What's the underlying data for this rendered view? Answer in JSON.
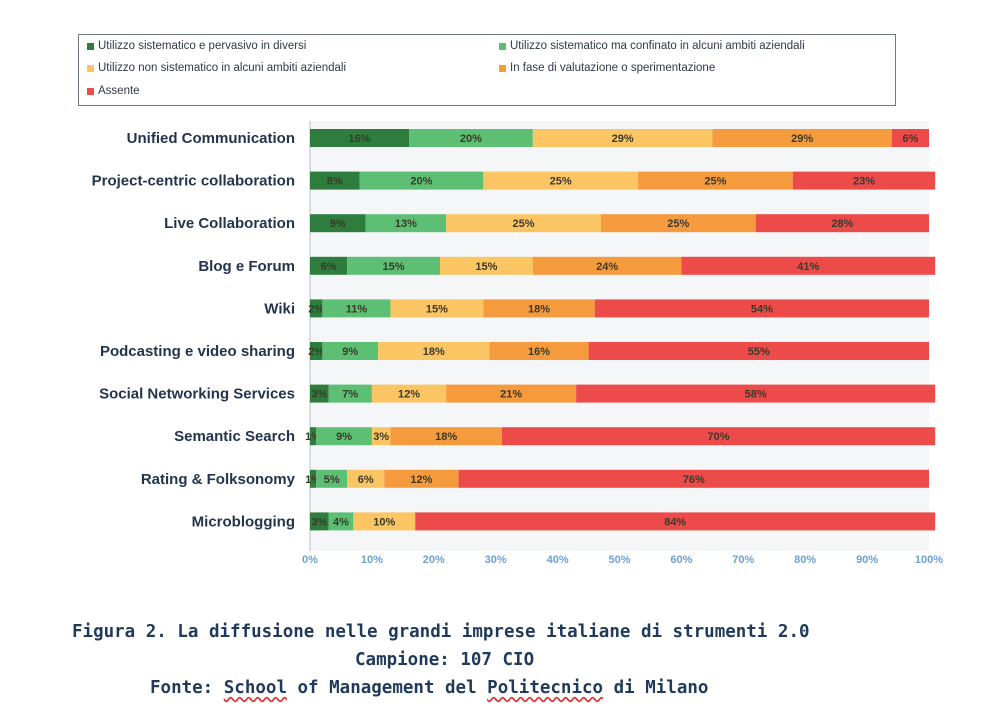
{
  "chart_data": {
    "type": "bar",
    "orientation": "horizontal",
    "stacked": true,
    "normalized_percent": true,
    "categories": [
      "Unified Communication",
      "Project-centric collaboration",
      "Live Collaboration",
      "Blog e Forum",
      "Wiki",
      "Podcasting e video sharing",
      "Social Networking Services",
      "Semantic Search",
      "Rating & Folksonomy",
      "Microblogging"
    ],
    "series": [
      {
        "name": "Utilizzo sistematico e pervasivo in diversi",
        "color": "#2e7d3e",
        "values": [
          16,
          8,
          9,
          6,
          2,
          2,
          3,
          1,
          1,
          3
        ],
        "labels": [
          "16%",
          "8%",
          "9%",
          "6%",
          "2%",
          "2%",
          "3%",
          "1%",
          "1%",
          "3%"
        ]
      },
      {
        "name": "Utilizzo sistematico ma confinato in alcuni ambiti aziendali",
        "color": "#5cbf73",
        "values": [
          20,
          20,
          13,
          15,
          11,
          9,
          7,
          9,
          5,
          4
        ],
        "labels": [
          "20%",
          "20%",
          "13%",
          "15%",
          "11%",
          "9%",
          "7%",
          "9%",
          "5%",
          "4%"
        ]
      },
      {
        "name": "Utilizzo non sistematico in alcuni ambiti aziendali",
        "color": "#fac562",
        "values": [
          29,
          25,
          25,
          15,
          15,
          18,
          12,
          3,
          6,
          10
        ],
        "labels": [
          "29%",
          "25%",
          "25%",
          "15%",
          "15%",
          "18%",
          "12%",
          "3%",
          "6%",
          "10%"
        ]
      },
      {
        "name": "In fase di valutazione o sperimentazione",
        "color": "#f59b3d",
        "values": [
          29,
          25,
          25,
          24,
          18,
          16,
          21,
          18,
          12,
          0
        ],
        "labels": [
          "29%",
          "25%",
          "25%",
          "24%",
          "18%",
          "16%",
          "21%",
          "18%",
          "12%",
          ""
        ]
      },
      {
        "name": "Assente",
        "color": "#ed4a4a",
        "values": [
          6,
          23,
          28,
          41,
          54,
          55,
          58,
          70,
          76,
          84
        ],
        "labels": [
          "6%",
          "23%",
          "28%",
          "41%",
          "54%",
          "55%",
          "58%",
          "70%",
          "76%",
          "84%"
        ]
      }
    ],
    "xlim": [
      0,
      100
    ],
    "x_ticks": [
      "0%",
      "10%",
      "20%",
      "30%",
      "40%",
      "50%",
      "60%",
      "70%",
      "80%",
      "90%",
      "100%"
    ],
    "legend_position": "top",
    "grid": false
  },
  "caption": {
    "line1": "Figura 2. La diffusione nelle grandi imprese italiane di strumenti 2.0",
    "line2": "Campione: 107 CIO",
    "line3_prefix": "Fonte: ",
    "line3_school": "School",
    "line3_mid": " of Management del ",
    "line3_politecnico": "Politecnico",
    "line3_suffix": " di Milano"
  }
}
